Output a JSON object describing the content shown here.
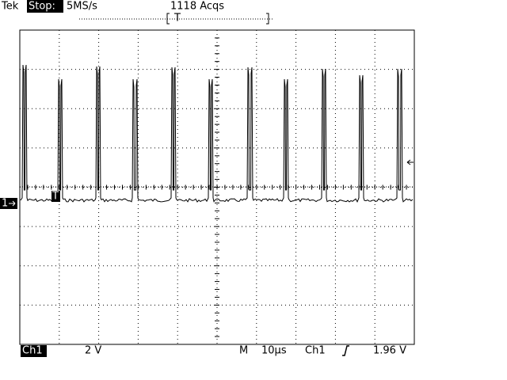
{
  "header": {
    "brand": "Tek",
    "state": "Stop:",
    "sample_rate": "5MS/s",
    "acquisitions": "1118 Acqs",
    "trigger_position_marker": "T"
  },
  "screen": {
    "channel_marker": "1",
    "trigger_marker": "T"
  },
  "footer": {
    "channel": "Ch1",
    "volts_per_div": "2 V",
    "timebase_label": "M",
    "time_per_div": "10µs",
    "trigger_source": "Ch1",
    "trigger_level": "1.96 V"
  }
}
